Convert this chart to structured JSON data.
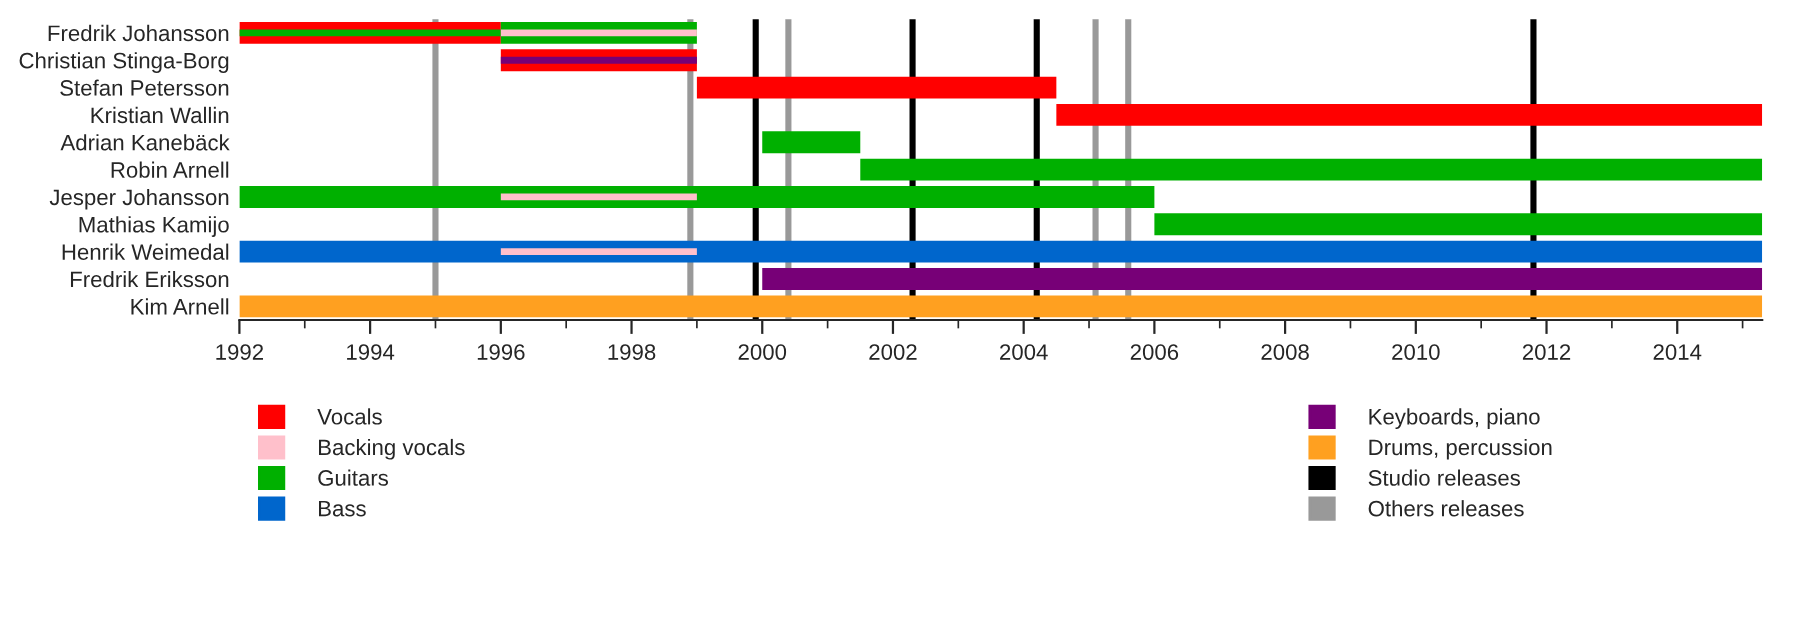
{
  "chart_data": {
    "type": "bar",
    "orientation": "horizontal",
    "categories": [
      "Fredrik Johansson",
      "Christian Stinga-Borg",
      "Stefan Petersson",
      "Kristian Wallin",
      "Adrian Kanebäck",
      "Robin Arnell",
      "Jesper Johansson",
      "Mathias Kamijo",
      "Henrik Weimedal",
      "Fredrik Eriksson",
      "Kim Arnell"
    ],
    "series": [
      {
        "color": "#00b000",
        "values": [
          4,
          null,
          null,
          null,
          null,
          null,
          null,
          null,
          null,
          null,
          null
        ],
        "base": [
          1992,
          null,
          null,
          null,
          null,
          null,
          null,
          null,
          null,
          null,
          null
        ]
      },
      {
        "color": "#770077",
        "values": [
          null,
          3,
          null,
          null,
          null,
          null,
          null,
          null,
          null,
          null,
          null
        ],
        "base": [
          null,
          1996,
          null,
          null,
          null,
          null,
          null,
          null,
          null,
          null,
          null
        ]
      },
      {
        "name": "Vocals",
        "color": "#ff0000",
        "values": [
          4,
          3,
          5.5,
          10.8,
          null,
          null,
          null,
          null,
          null,
          null,
          null
        ],
        "base": [
          1992,
          1996,
          1999,
          2004.5,
          null,
          null,
          null,
          null,
          null,
          null,
          null
        ]
      },
      {
        "name": "Backing vocals",
        "color": "#ffc0cb",
        "values": [
          3,
          null,
          null,
          null,
          null,
          null,
          3,
          null,
          3,
          null,
          null
        ],
        "base": [
          1996,
          null,
          null,
          null,
          null,
          null,
          1996,
          null,
          1996,
          null,
          null
        ]
      },
      {
        "name": "Guitars",
        "color": "#00b000",
        "values": [
          3,
          null,
          null,
          null,
          1.5,
          13.8,
          14,
          9.3,
          null,
          null,
          null
        ],
        "base": [
          1996,
          null,
          null,
          null,
          2000,
          2001.5,
          1992,
          2006,
          null,
          null,
          null
        ]
      },
      {
        "name": "Bass",
        "color": "#0066cc",
        "values": [
          null,
          null,
          null,
          null,
          null,
          null,
          null,
          null,
          23.3,
          null,
          null
        ],
        "base": [
          null,
          null,
          null,
          null,
          null,
          null,
          null,
          null,
          1992,
          null,
          null
        ]
      },
      {
        "name": "Keyboards, piano",
        "color": "#770077",
        "values": [
          null,
          null,
          null,
          null,
          null,
          null,
          null,
          null,
          null,
          15.3,
          null
        ],
        "base": [
          null,
          null,
          null,
          null,
          null,
          null,
          null,
          null,
          null,
          2000,
          null
        ]
      },
      {
        "name": "Drums, percussion",
        "color": "#ffa020",
        "values": [
          null,
          null,
          null,
          null,
          null,
          null,
          null,
          null,
          null,
          null,
          23.3
        ],
        "base": [
          null,
          null,
          null,
          null,
          null,
          null,
          null,
          null,
          null,
          null,
          1992
        ]
      }
    ],
    "ref_lines": [
      {
        "axis": "x",
        "value": 1999.9,
        "label": "Studio releases",
        "color": "#000000"
      },
      {
        "axis": "x",
        "value": 2002.3,
        "color": "#000000"
      },
      {
        "axis": "x",
        "value": 2004.2,
        "color": "#000000"
      },
      {
        "axis": "x",
        "value": 2011.8,
        "color": "#000000"
      },
      {
        "axis": "x",
        "value": 1995.0,
        "label": "Others releases",
        "color": "#999999"
      },
      {
        "axis": "x",
        "value": 1998.9,
        "color": "#999999"
      },
      {
        "axis": "x",
        "value": 2000.4,
        "color": "#999999"
      },
      {
        "axis": "x",
        "value": 2005.1,
        "color": "#999999"
      },
      {
        "axis": "x",
        "value": 2005.6,
        "color": "#999999"
      }
    ],
    "xlim": [
      1992,
      2015.3
    ],
    "xticks": [
      1992,
      1994,
      1996,
      1998,
      2000,
      2002,
      2004,
      2006,
      2008,
      2010,
      2012,
      2014
    ],
    "legend": "bottom"
  }
}
